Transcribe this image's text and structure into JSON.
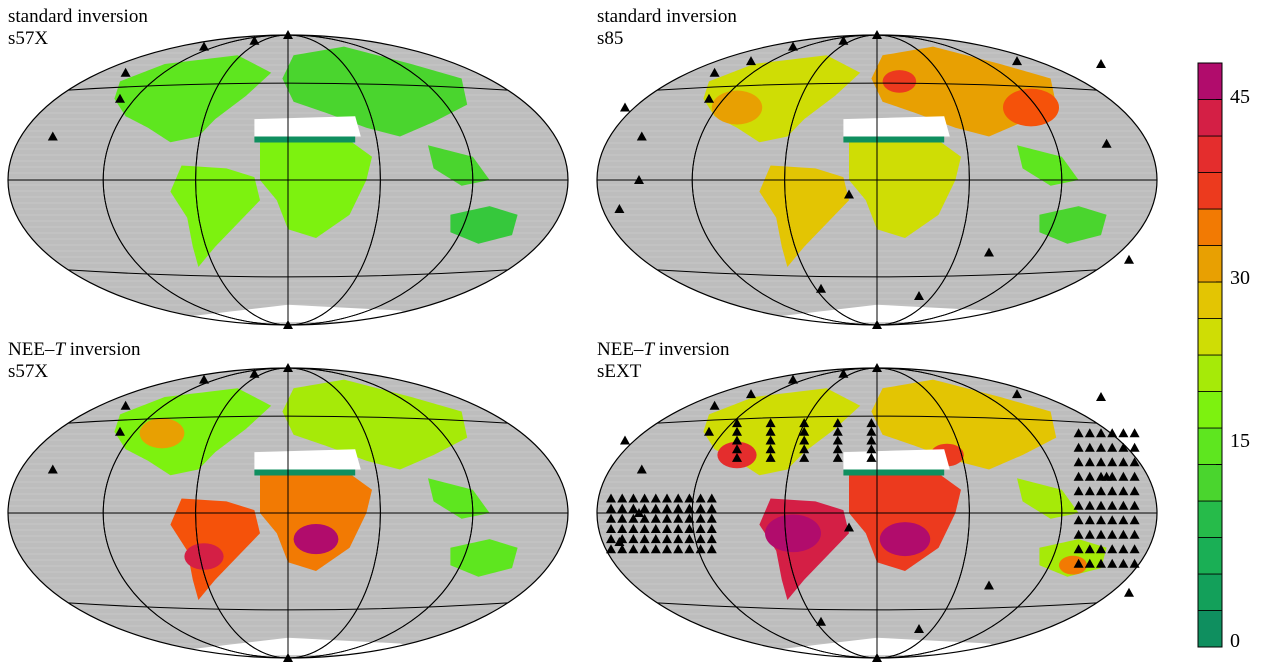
{
  "panels": [
    {
      "line1": "standard inversion",
      "line2": "s57X",
      "stations": "few"
    },
    {
      "line1": "standard inversion",
      "line2": "s85",
      "stations": "medium"
    },
    {
      "line1_pre": "NEE–",
      "line1_italic": "T",
      "line1_post": " inversion",
      "line2": "s57X",
      "stations": "few"
    },
    {
      "line1_pre": "NEE–",
      "line1_italic": "T",
      "line1_post": " inversion",
      "line2": "sEXT",
      "stations": "many"
    }
  ],
  "colorbar": {
    "ticks": [
      "0",
      "15",
      "30",
      "45"
    ],
    "tick_values": [
      0,
      15,
      30,
      45
    ],
    "min": 0,
    "max": 48,
    "steps": 16,
    "colors": [
      "#0f8f5f",
      "#13a05a",
      "#1aaf55",
      "#26bb4a",
      "#36c83c",
      "#4ad52e",
      "#5ee61f",
      "#7df20f",
      "#a6ea08",
      "#cfdd05",
      "#e3c503",
      "#e8a002",
      "#f27a03",
      "#f5520a",
      "#ec3a1e",
      "#e42d2d",
      "#d41f45",
      "#b10c6c"
    ]
  },
  "colors": {
    "ocean": "#bdbdbd",
    "grid": "#000000",
    "ice": "#ffffff",
    "station": "#000000"
  }
}
